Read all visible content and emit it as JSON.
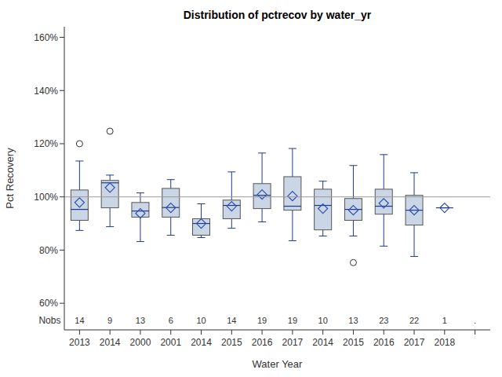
{
  "chart_data": {
    "type": "box",
    "title": "Distribution of pctrecov by water_yr",
    "x_label": "Water Year",
    "y_label": "Pct Recovery",
    "categories": [
      "2013",
      "2014",
      "2000",
      "2001",
      "2014",
      "2015",
      "2016",
      "2017",
      "2014",
      "2015",
      "2016",
      "2017",
      "2018",
      null
    ],
    "boxes": [
      {
        "min": 87.4,
        "q1": 91.2,
        "median": 95.3,
        "q3": 102.6,
        "max": 113.5,
        "mean": 97.9,
        "outliers": [
          120
        ]
      },
      {
        "min": 88.8,
        "q1": 95.9,
        "median": 105.3,
        "q3": 106.2,
        "max": 108.2,
        "mean": 103.5,
        "outliers": [
          124.7
        ]
      },
      {
        "min": 83.2,
        "q1": 92.4,
        "median": 94.7,
        "q3": 97.9,
        "max": 101.5,
        "mean": 93.8,
        "outliers": []
      },
      {
        "min": 85.6,
        "q1": 92.4,
        "median": 96.0,
        "q3": 103.2,
        "max": 106.5,
        "mean": 95.9,
        "outliers": []
      },
      {
        "min": 84.7,
        "q1": 85.6,
        "median": 90.0,
        "q3": 91.8,
        "max": 97.4,
        "mean": 90.0,
        "outliers": []
      },
      {
        "min": 88.2,
        "q1": 91.8,
        "median": 96.8,
        "q3": 98.8,
        "max": 109.4,
        "mean": 96.5,
        "outliers": []
      },
      {
        "min": 90.6,
        "q1": 95.6,
        "median": 100.6,
        "q3": 105.0,
        "max": 116.5,
        "mean": 100.9,
        "outliers": []
      },
      {
        "min": 83.5,
        "q1": 95.0,
        "median": 96.5,
        "q3": 107.6,
        "max": 118.2,
        "mean": 100.3,
        "outliers": []
      },
      {
        "min": 85.3,
        "q1": 87.6,
        "median": 96.8,
        "q3": 102.9,
        "max": 105.9,
        "mean": 95.6,
        "outliers": []
      },
      {
        "min": 85.3,
        "q1": 91.2,
        "median": 95.3,
        "q3": 99.4,
        "max": 111.8,
        "mean": 95.0,
        "outliers": [
          75.3
        ]
      },
      {
        "min": 81.5,
        "q1": 93.5,
        "median": 96.5,
        "q3": 102.9,
        "max": 115.9,
        "mean": 97.6,
        "outliers": []
      },
      {
        "min": 77.6,
        "q1": 89.4,
        "median": 95.0,
        "q3": 100.6,
        "max": 109.1,
        "mean": 95.0,
        "outliers": []
      },
      {
        "min": 95.9,
        "q1": 95.9,
        "median": 95.9,
        "q3": 95.9,
        "max": 95.9,
        "mean": 95.9,
        "outliers": []
      },
      null
    ],
    "nobs_label": "Nobs",
    "nobs": [
      14,
      9,
      13,
      6,
      10,
      14,
      19,
      19,
      10,
      13,
      23,
      22,
      1,
      "."
    ],
    "ylim": [
      50,
      164
    ],
    "yticks": [
      {
        "value": 60,
        "label": "60%"
      },
      {
        "value": 80,
        "label": "80%"
      },
      {
        "value": 100,
        "label": "100%"
      },
      {
        "value": 120,
        "label": "120%"
      },
      {
        "value": 140,
        "label": "140%"
      },
      {
        "value": 160,
        "label": "160%"
      }
    ],
    "reference_line": 100,
    "color": "#cad5e5"
  }
}
